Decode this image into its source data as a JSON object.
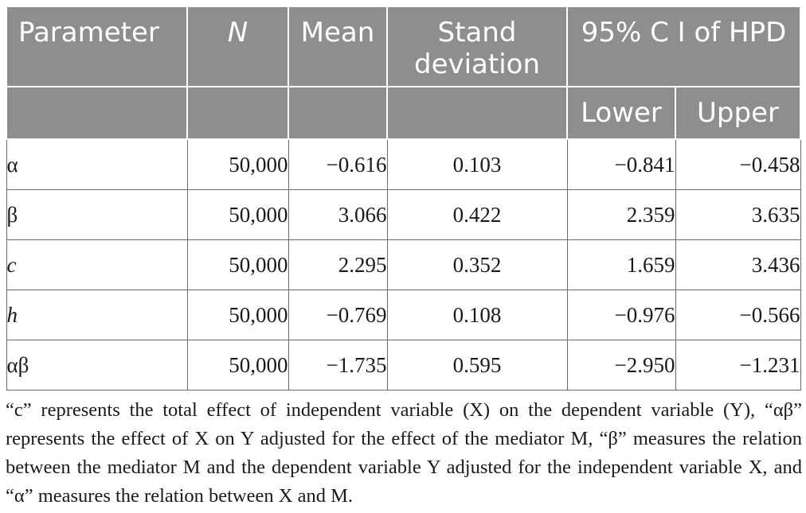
{
  "header": {
    "parameter": "Parameter",
    "n": "N",
    "mean": "Mean",
    "stand_deviation": "Stand deviation",
    "ci": "95% C I of HPD",
    "lower": "Lower",
    "upper": "Upper"
  },
  "rows": [
    {
      "parameter": "α",
      "n": "50,000",
      "mean": "−0.616",
      "sd": "0.103",
      "lower": "−0.841",
      "upper": "−0.458"
    },
    {
      "parameter": "β",
      "n": "50,000",
      "mean": "3.066",
      "sd": "0.422",
      "lower": "2.359",
      "upper": "3.635"
    },
    {
      "parameter": "c",
      "n": "50,000",
      "mean": "2.295",
      "sd": "0.352",
      "lower": "1.659",
      "upper": "3.436"
    },
    {
      "parameter": "h",
      "n": "50,000",
      "mean": "−0.769",
      "sd": "0.108",
      "lower": "−0.976",
      "upper": "−0.566"
    },
    {
      "parameter": "αβ",
      "n": "50,000",
      "mean": "−1.735",
      "sd": "0.595",
      "lower": "−2.950",
      "upper": "−1.231"
    }
  ],
  "footnote": "“c” represents the total effect of independent variable (X) on the dependent variable (Y), “αβ” represents the effect of X on Y adjusted for the effect of the mediator M, “β” measures the relation between the mediator M and the dependent variable Y adjusted for the independent variable X, and “α” measures the relation between X and M.",
  "colors": {
    "header_bg": "#8e8e8e",
    "header_text": "#ffffff",
    "border": "#6b6b6b"
  }
}
